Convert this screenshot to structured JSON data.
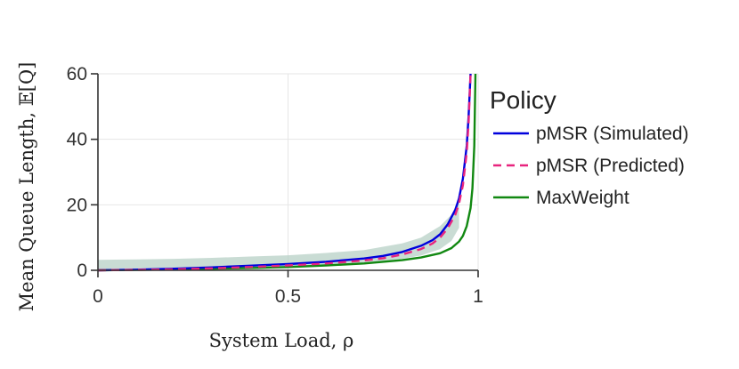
{
  "chart_data": {
    "type": "line",
    "xlabel": "System Load, ρ",
    "ylabel": "Mean Queue Length, 𝔼[Q]",
    "xlim": [
      0,
      1
    ],
    "ylim": [
      0,
      60
    ],
    "x_ticks": [
      0,
      0.5,
      1
    ],
    "x_tick_labels": [
      "0",
      "0.5",
      "1"
    ],
    "y_ticks": [
      0,
      20,
      40,
      60
    ],
    "y_tick_labels": [
      "0",
      "20",
      "40",
      "60"
    ],
    "grid": true,
    "legend": {
      "title": "Policy",
      "position": "right"
    },
    "band": {
      "x": [
        0,
        0.1,
        0.2,
        0.3,
        0.4,
        0.5,
        0.6,
        0.7,
        0.8,
        0.85,
        0.9,
        0.93,
        0.95
      ],
      "lower": [
        0,
        0,
        0.2,
        0.4,
        0.7,
        1.0,
        1.5,
        2.2,
        3.5,
        4.5,
        6.5,
        9,
        13
      ],
      "upper": [
        3.2,
        3.3,
        3.5,
        3.8,
        4.2,
        4.6,
        5.3,
        6.2,
        8.2,
        10,
        13.5,
        17,
        22
      ]
    },
    "series": [
      {
        "name": "pMSR (Simulated)",
        "color": "#0000dd",
        "dash": "solid",
        "x": [
          0,
          0.1,
          0.2,
          0.3,
          0.4,
          0.5,
          0.6,
          0.7,
          0.75,
          0.8,
          0.85,
          0.88,
          0.9,
          0.92,
          0.94,
          0.95,
          0.96,
          0.97,
          0.975,
          0.98
        ],
        "y": [
          0,
          0.2,
          0.5,
          0.9,
          1.4,
          1.9,
          2.6,
          3.6,
          4.4,
          5.6,
          7.5,
          9.2,
          11,
          14,
          18.5,
          22,
          28,
          38,
          47,
          60
        ]
      },
      {
        "name": "pMSR (Predicted)",
        "color": "#e8247e",
        "dash": "dashed",
        "x": [
          0,
          0.1,
          0.2,
          0.3,
          0.4,
          0.5,
          0.6,
          0.7,
          0.75,
          0.8,
          0.85,
          0.88,
          0.9,
          0.92,
          0.94,
          0.95,
          0.96,
          0.97,
          0.975,
          0.98
        ],
        "y": [
          0,
          0.1,
          0.3,
          0.6,
          1.0,
          1.5,
          2.1,
          3.0,
          3.7,
          4.8,
          6.5,
          8.2,
          10,
          12.8,
          17,
          20.5,
          26,
          36,
          45,
          60
        ]
      },
      {
        "name": "MaxWeight",
        "color": "#118811",
        "dash": "solid",
        "x": [
          0,
          0.1,
          0.2,
          0.3,
          0.4,
          0.5,
          0.6,
          0.7,
          0.8,
          0.85,
          0.9,
          0.93,
          0.95,
          0.96,
          0.97,
          0.98,
          0.985,
          0.99,
          0.993
        ],
        "y": [
          0,
          0.1,
          0.25,
          0.45,
          0.7,
          1.0,
          1.5,
          2.1,
          3.1,
          3.9,
          5.2,
          6.8,
          8.8,
          10.5,
          13.5,
          19,
          25,
          38,
          60
        ]
      }
    ]
  }
}
